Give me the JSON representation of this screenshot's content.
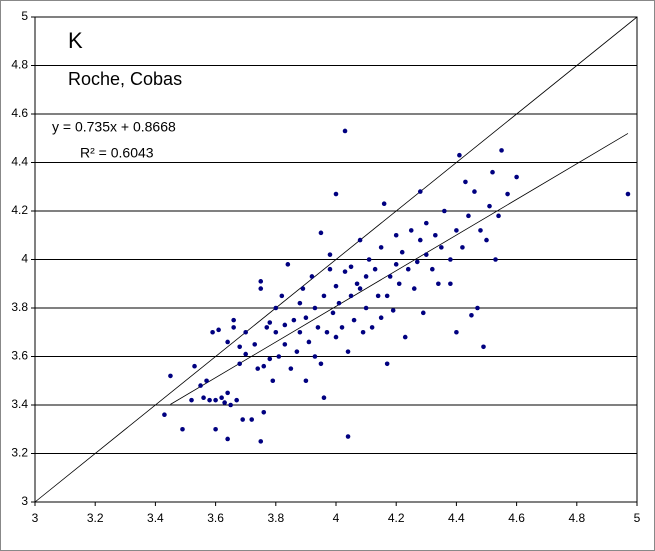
{
  "chart_data": {
    "type": "scatter",
    "title": "K",
    "subtitle": "Roche, Cobas",
    "annotations": [
      "y = 0.735x + 0.8668",
      "R² = 0.6043"
    ],
    "trendline": {
      "slope": 0.735,
      "intercept": 0.8668,
      "x_range": [
        3.45,
        4.97
      ]
    },
    "reference_line": true,
    "grid": true,
    "color": "#000080",
    "xlim": [
      3,
      5
    ],
    "xticks": [
      3,
      3.2,
      3.4,
      3.6,
      3.8,
      4,
      4.2,
      4.4,
      4.6,
      4.8,
      5
    ],
    "ylim": [
      3,
      5
    ],
    "yticks": [
      3,
      3.2,
      3.4,
      3.6,
      3.8,
      4,
      4.2,
      4.4,
      4.6,
      4.8,
      5
    ],
    "x": [
      3.45,
      3.43,
      3.49,
      3.52,
      3.53,
      3.55,
      3.56,
      3.57,
      3.58,
      3.59,
      3.6,
      3.6,
      3.61,
      3.62,
      3.63,
      3.64,
      3.64,
      3.64,
      3.65,
      3.66,
      3.66,
      3.67,
      3.68,
      3.68,
      3.69,
      3.7,
      3.7,
      3.72,
      3.73,
      3.74,
      3.75,
      3.75,
      3.75,
      3.76,
      3.76,
      3.77,
      3.78,
      3.78,
      3.79,
      3.8,
      3.8,
      3.81,
      3.82,
      3.83,
      3.83,
      3.84,
      3.85,
      3.86,
      3.87,
      3.88,
      3.88,
      3.89,
      3.9,
      3.9,
      3.91,
      3.92,
      3.93,
      3.93,
      3.94,
      3.95,
      3.95,
      3.96,
      3.96,
      3.97,
      3.98,
      3.98,
      3.99,
      4.0,
      4.0,
      4.0,
      4.01,
      4.02,
      4.03,
      4.03,
      4.04,
      4.04,
      4.05,
      4.05,
      4.06,
      4.07,
      4.08,
      4.08,
      4.09,
      4.1,
      4.1,
      4.11,
      4.12,
      4.13,
      4.14,
      4.15,
      4.15,
      4.16,
      4.17,
      4.17,
      4.18,
      4.19,
      4.2,
      4.2,
      4.21,
      4.22,
      4.23,
      4.24,
      4.25,
      4.26,
      4.27,
      4.28,
      4.28,
      4.29,
      4.3,
      4.3,
      4.32,
      4.33,
      4.34,
      4.35,
      4.36,
      4.38,
      4.38,
      4.4,
      4.4,
      4.41,
      4.42,
      4.43,
      4.44,
      4.45,
      4.46,
      4.47,
      4.48,
      4.49,
      4.5,
      4.51,
      4.52,
      4.53,
      4.54,
      4.55,
      4.57,
      4.6,
      4.97
    ],
    "values": [
      3.52,
      3.36,
      3.3,
      3.42,
      3.56,
      3.48,
      3.43,
      3.5,
      3.42,
      3.7,
      3.3,
      3.42,
      3.71,
      3.43,
      3.41,
      3.26,
      3.45,
      3.66,
      3.4,
      3.75,
      3.72,
      3.42,
      3.57,
      3.64,
      3.34,
      3.61,
      3.7,
      3.34,
      3.65,
      3.55,
      3.25,
      3.88,
      3.91,
      3.37,
      3.56,
      3.72,
      3.59,
      3.74,
      3.5,
      3.7,
      3.8,
      3.6,
      3.85,
      3.65,
      3.73,
      3.98,
      3.55,
      3.75,
      3.62,
      3.82,
      3.7,
      3.88,
      3.5,
      3.76,
      3.66,
      3.93,
      3.8,
      3.6,
      3.72,
      3.57,
      4.11,
      3.43,
      3.85,
      3.7,
      3.96,
      4.02,
      3.78,
      3.89,
      4.27,
      3.68,
      3.82,
      3.72,
      4.53,
      3.95,
      3.27,
      3.62,
      3.85,
      3.97,
      3.75,
      3.9,
      3.88,
      4.08,
      3.7,
      3.8,
      3.93,
      4.0,
      3.72,
      3.96,
      3.85,
      3.76,
      4.05,
      4.23,
      3.85,
      3.57,
      3.93,
      3.79,
      3.98,
      4.1,
      3.9,
      4.03,
      3.68,
      3.96,
      4.12,
      3.88,
      3.99,
      4.28,
      4.08,
      3.78,
      4.02,
      4.15,
      3.96,
      4.1,
      3.9,
      4.05,
      4.2,
      4.0,
      3.9,
      3.7,
      4.12,
      4.43,
      4.05,
      4.32,
      4.18,
      3.77,
      4.28,
      3.8,
      4.12,
      3.64,
      4.08,
      4.22,
      4.36,
      4.0,
      4.18,
      4.45,
      4.27,
      4.34,
      4.27
    ]
  }
}
